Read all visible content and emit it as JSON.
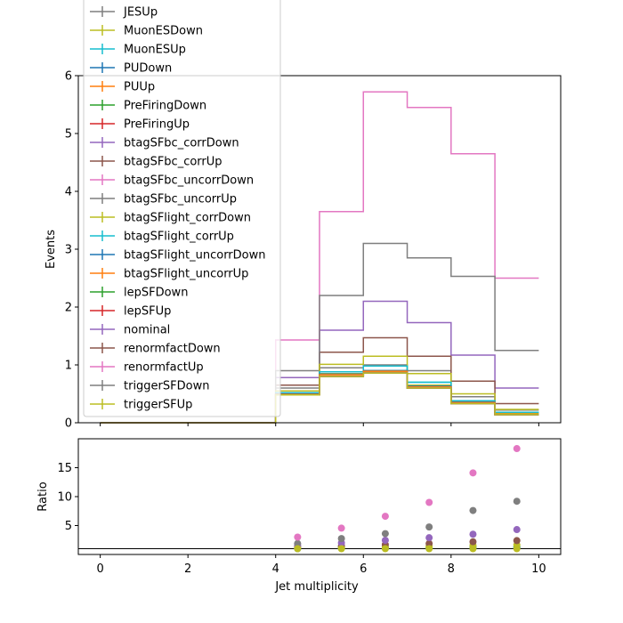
{
  "chart_data": [
    {
      "type": "line",
      "ylabel": "Events",
      "xlim": [
        -0.5,
        10.5
      ],
      "ylim": [
        0,
        6
      ],
      "yticks": [
        0,
        1,
        2,
        3,
        4,
        5,
        6
      ],
      "xticks": [
        0,
        2,
        4,
        6,
        8,
        10
      ],
      "legend_position": "upper-left",
      "bin_edges": [
        0,
        1,
        2,
        3,
        4,
        5,
        6,
        7,
        8,
        9,
        10
      ],
      "series": [
        {
          "name": "JESUp",
          "color": "#7f7f7f",
          "values": [
            0,
            0,
            0,
            0,
            0.6,
            0.95,
            1.0,
            0.9,
            0.45,
            0.22
          ]
        },
        {
          "name": "MuonESDown",
          "color": "#bcbd22",
          "values": [
            0,
            0,
            0,
            0,
            0.5,
            0.85,
            0.9,
            0.65,
            0.35,
            0.17
          ]
        },
        {
          "name": "MuonESUp",
          "color": "#17becf",
          "values": [
            0,
            0,
            0,
            0,
            0.52,
            0.88,
            0.98,
            0.7,
            0.38,
            0.18
          ]
        },
        {
          "name": "PUDown",
          "color": "#1f77b4",
          "values": [
            0,
            0,
            0,
            0,
            0.5,
            0.84,
            0.9,
            0.63,
            0.36,
            0.15
          ]
        },
        {
          "name": "PUUp",
          "color": "#ff7f0e",
          "values": [
            0,
            0,
            0,
            0,
            0.49,
            0.83,
            0.89,
            0.62,
            0.35,
            0.15
          ]
        },
        {
          "name": "PreFiringDown",
          "color": "#2ca02c",
          "values": [
            0,
            0,
            0,
            0,
            0.48,
            0.8,
            0.86,
            0.6,
            0.33,
            0.14
          ]
        },
        {
          "name": "PreFiringUp",
          "color": "#d62728",
          "values": [
            0,
            0,
            0,
            0,
            0.48,
            0.8,
            0.86,
            0.6,
            0.33,
            0.14
          ]
        },
        {
          "name": "btagSFbc_corrDown",
          "color": "#9467bd",
          "values": [
            0,
            0,
            0,
            0,
            0.78,
            1.6,
            2.1,
            1.73,
            1.17,
            0.6
          ]
        },
        {
          "name": "btagSFbc_corrUp",
          "color": "#8c564b",
          "values": [
            0,
            0,
            0,
            0,
            0.65,
            1.22,
            1.47,
            1.15,
            0.72,
            0.33
          ]
        },
        {
          "name": "btagSFbc_uncorrDown",
          "color": "#e377c2",
          "values": [
            0,
            0,
            0,
            0,
            1.43,
            3.65,
            5.72,
            5.45,
            4.65,
            2.5
          ]
        },
        {
          "name": "btagSFbc_uncorrUp",
          "color": "#7f7f7f",
          "values": [
            0,
            0,
            0,
            0,
            0.9,
            2.2,
            3.1,
            2.85,
            2.53,
            1.25
          ]
        },
        {
          "name": "btagSFlight_corrDown",
          "color": "#bcbd22",
          "values": [
            0,
            0,
            0,
            0,
            0.55,
            1.01,
            1.15,
            0.85,
            0.5,
            0.23
          ]
        },
        {
          "name": "btagSFlight_corrUp",
          "color": "#17becf",
          "values": [
            0,
            0,
            0,
            0,
            0.52,
            0.88,
            0.98,
            0.7,
            0.38,
            0.18
          ]
        },
        {
          "name": "btagSFlight_uncorrDown",
          "color": "#1f77b4",
          "values": [
            0,
            0,
            0,
            0,
            0.5,
            0.84,
            0.9,
            0.63,
            0.36,
            0.15
          ]
        },
        {
          "name": "btagSFlight_uncorrUp",
          "color": "#ff7f0e",
          "values": [
            0,
            0,
            0,
            0,
            0.49,
            0.83,
            0.89,
            0.62,
            0.35,
            0.15
          ]
        },
        {
          "name": "lepSFDown",
          "color": "#2ca02c",
          "values": [
            0,
            0,
            0,
            0,
            0.48,
            0.8,
            0.86,
            0.6,
            0.33,
            0.14
          ]
        },
        {
          "name": "lepSFUp",
          "color": "#d62728",
          "values": [
            0,
            0,
            0,
            0,
            0.48,
            0.8,
            0.86,
            0.6,
            0.33,
            0.14
          ]
        },
        {
          "name": "nominal",
          "color": "#9467bd",
          "values": [
            0,
            0,
            0,
            0,
            0.48,
            0.8,
            0.86,
            0.6,
            0.33,
            0.14
          ]
        },
        {
          "name": "renormfactDown",
          "color": "#8c564b",
          "values": [
            0,
            0,
            0,
            0,
            0.48,
            0.8,
            0.86,
            0.6,
            0.33,
            0.14
          ]
        },
        {
          "name": "renormfactUp",
          "color": "#e377c2",
          "values": [
            0,
            0,
            0,
            0,
            0.48,
            0.8,
            0.86,
            0.6,
            0.33,
            0.14
          ]
        },
        {
          "name": "triggerSFDown",
          "color": "#7f7f7f",
          "values": [
            0,
            0,
            0,
            0,
            0.48,
            0.8,
            0.86,
            0.6,
            0.33,
            0.14
          ]
        },
        {
          "name": "triggerSFUp",
          "color": "#bcbd22",
          "values": [
            0,
            0,
            0,
            0,
            0.48,
            0.8,
            0.86,
            0.6,
            0.33,
            0.14
          ]
        }
      ]
    },
    {
      "type": "scatter",
      "xlabel": "Jet multiplicity",
      "ylabel": "Ratio",
      "xlim": [
        -0.5,
        10.5
      ],
      "ylim": [
        0,
        20
      ],
      "yticks": [
        5,
        10,
        15
      ],
      "xticks": [
        0,
        2,
        4,
        6,
        8,
        10
      ],
      "reference_line": 1,
      "x": [
        4.5,
        5.5,
        6.5,
        7.5,
        8.5,
        9.5
      ],
      "series": [
        {
          "color": "#bcbd22",
          "values": [
            1.05,
            1.1,
            1.15,
            1.2,
            1.3,
            1.35
          ]
        },
        {
          "color": "#17becf",
          "values": [
            1.05,
            1.1,
            1.12,
            1.15,
            1.2,
            1.25
          ]
        },
        {
          "color": "#1f77b4",
          "values": [
            1.0,
            1.05,
            1.05,
            1.05,
            1.1,
            1.1
          ]
        },
        {
          "color": "#bcbd22",
          "values": [
            1.15,
            1.25,
            1.35,
            1.45,
            1.55,
            1.65
          ]
        },
        {
          "color": "#8c564b",
          "values": [
            1.35,
            1.5,
            1.7,
            1.9,
            2.2,
            2.4
          ]
        },
        {
          "color": "#9467bd",
          "values": [
            1.6,
            2.0,
            2.45,
            2.9,
            3.5,
            4.3
          ]
        },
        {
          "color": "#7f7f7f",
          "values": [
            1.9,
            2.75,
            3.6,
            4.75,
            7.6,
            9.2
          ]
        },
        {
          "color": "#e377c2",
          "values": [
            3.0,
            4.55,
            6.6,
            9.0,
            14.1,
            18.3
          ]
        },
        {
          "color": "#bcbd22",
          "values": [
            1.0,
            1.0,
            1.0,
            1.0,
            1.0,
            1.0
          ]
        }
      ]
    }
  ]
}
